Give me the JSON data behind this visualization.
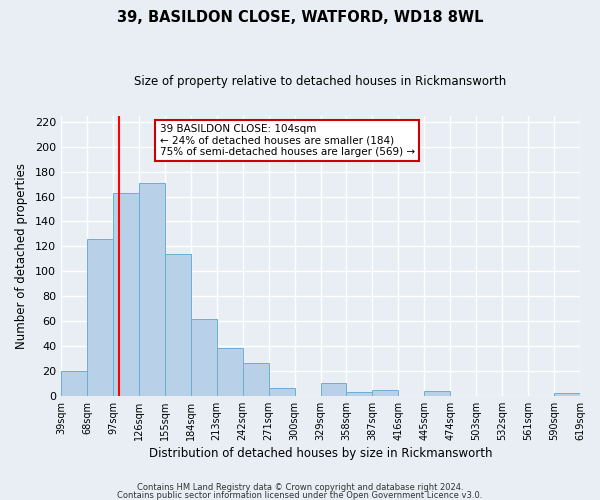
{
  "title": "39, BASILDON CLOSE, WATFORD, WD18 8WL",
  "subtitle": "Size of property relative to detached houses in Rickmansworth",
  "xlabel": "Distribution of detached houses by size in Rickmansworth",
  "ylabel": "Number of detached properties",
  "footer_lines": [
    "Contains HM Land Registry data © Crown copyright and database right 2024.",
    "Contains public sector information licensed under the Open Government Licence v3.0."
  ],
  "bin_edges": [
    39,
    68,
    97,
    126,
    155,
    184,
    213,
    242,
    271,
    300,
    329,
    358,
    387,
    416,
    445,
    474,
    503,
    532,
    561,
    590,
    619
  ],
  "counts": [
    20,
    126,
    163,
    171,
    114,
    62,
    38,
    26,
    6,
    0,
    10,
    3,
    5,
    0,
    4,
    0,
    0,
    0,
    0,
    2
  ],
  "bar_color": "#b8d0e8",
  "bar_edge_color": "#6aaed6",
  "red_line_x": 104,
  "annotation_title": "39 BASILDON CLOSE: 104sqm",
  "annotation_line2": "← 24% of detached houses are smaller (184)",
  "annotation_line3": "75% of semi-detached houses are larger (569) →",
  "ylim": [
    0,
    225
  ],
  "yticks": [
    0,
    20,
    40,
    60,
    80,
    100,
    120,
    140,
    160,
    180,
    200,
    220
  ],
  "background_color": "#e8eef4",
  "plot_background": "#e8eef4",
  "grid_color": "#ffffff",
  "title_fontsize": 10.5,
  "subtitle_fontsize": 8.5
}
